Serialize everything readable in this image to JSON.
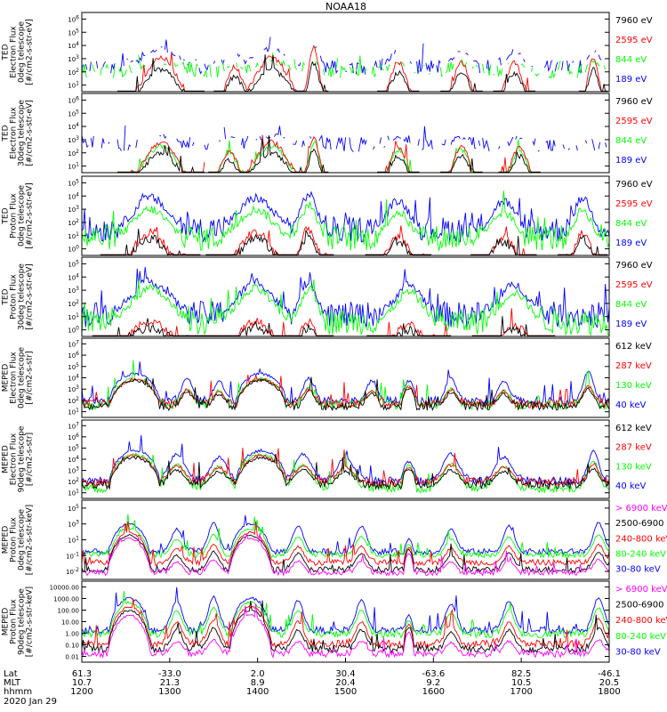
{
  "title": "NOAA18",
  "date": "2020 Jan 29",
  "colors": {
    "black": "#000000",
    "blue": "#0000ff",
    "red": "#ff0000",
    "green": "#00ff00",
    "magenta": "#ff00ff"
  },
  "xaxis": {
    "row_labels": [
      "Lat",
      "MLT",
      "hhmm"
    ],
    "ticks": [
      {
        "lat": "61.3",
        "mlt": "10.7",
        "hhmm": "1200"
      },
      {
        "lat": "-33.0",
        "mlt": "21.3",
        "hhmm": "1300"
      },
      {
        "lat": "2.0",
        "mlt": "8.9",
        "hhmm": "1400"
      },
      {
        "lat": "30.4",
        "mlt": "20.4",
        "hhmm": "1500"
      },
      {
        "lat": "-63.6",
        "mlt": "9.2",
        "hhmm": "1600"
      },
      {
        "lat": "82.5",
        "mlt": "10.5",
        "hhmm": "1700"
      },
      {
        "lat": "-46.1",
        "mlt": "20.5",
        "hhmm": "1800"
      }
    ],
    "range_hhmm": [
      1200,
      1800
    ]
  },
  "chart_data": [
    {
      "type": "line",
      "ylabel": [
        "TED",
        "Electron Flux",
        "0deg telescope",
        "[#/cm2-s-str-eV]"
      ],
      "yticks": [
        "10^1",
        "10^2",
        "10^3",
        "10^4",
        "10^5",
        "10^6"
      ],
      "legend": [
        {
          "label": "7960 eV",
          "color": "black"
        },
        {
          "label": "2595 eV",
          "color": "red"
        },
        {
          "label": "844 eV",
          "color": "green"
        },
        {
          "label": "189 eV",
          "color": "blue"
        }
      ],
      "ylim_log10": [
        0,
        6.5
      ],
      "series": {
        "blue": {
          "base": 2.0,
          "peak": 3.5
        },
        "red": {
          "base": -1,
          "peak": 2.8
        },
        "green": {
          "base": 1.7,
          "peak": 2.4
        },
        "black": {
          "base": -1,
          "peak": 1.8
        }
      },
      "events": [
        {
          "t": 0.15,
          "w": 0.06,
          "a": 1.0
        },
        {
          "t": 0.29,
          "w": 0.03,
          "a": 0.8
        },
        {
          "t": 0.36,
          "w": 0.06,
          "a": 1.0
        },
        {
          "t": 0.44,
          "w": 0.02,
          "a": 1.2
        },
        {
          "t": 0.6,
          "w": 0.03,
          "a": 0.9
        },
        {
          "t": 0.72,
          "w": 0.03,
          "a": 0.9
        },
        {
          "t": 0.82,
          "w": 0.03,
          "a": 0.9
        },
        {
          "t": 0.97,
          "w": 0.02,
          "a": 1.0
        }
      ],
      "bg": "sparse"
    },
    {
      "type": "line",
      "ylabel": [
        "TED",
        "Electron Flux",
        "30deg telescope",
        "[#/cm2-s-str-eV]"
      ],
      "yticks": [
        "10^1",
        "10^2",
        "10^3",
        "10^4",
        "10^5",
        "10^6"
      ],
      "legend": [
        {
          "label": "7960 eV",
          "color": "black"
        },
        {
          "label": "2595 eV",
          "color": "red"
        },
        {
          "label": "844 eV",
          "color": "green"
        },
        {
          "label": "189 eV",
          "color": "blue"
        }
      ],
      "ylim_log10": [
        0,
        6.5
      ],
      "series": {
        "blue": {
          "base": 2.3,
          "peak": 3.0
        },
        "red": {
          "base": -1,
          "peak": 2.5
        },
        "green": {
          "base": -1,
          "peak": 2.2
        },
        "black": {
          "base": -1,
          "peak": 1.6
        }
      },
      "events": [
        {
          "t": 0.15,
          "w": 0.06,
          "a": 1.0
        },
        {
          "t": 0.28,
          "w": 0.03,
          "a": 0.8
        },
        {
          "t": 0.36,
          "w": 0.06,
          "a": 1.0
        },
        {
          "t": 0.44,
          "w": 0.02,
          "a": 1.1
        },
        {
          "t": 0.6,
          "w": 0.03,
          "a": 0.9
        },
        {
          "t": 0.72,
          "w": 0.03,
          "a": 0.9
        },
        {
          "t": 0.83,
          "w": 0.03,
          "a": 0.9
        }
      ],
      "bg": "sparse"
    },
    {
      "type": "line",
      "ylabel": [
        "TED",
        "Proton Flux",
        "0deg telescope",
        "[#/cm2-s-str-eV]"
      ],
      "yticks": [
        "10^0",
        "10^1",
        "10^2",
        "10^3",
        "10^4",
        "10^5"
      ],
      "legend": [
        {
          "label": "7960 eV",
          "color": "black"
        },
        {
          "label": "2595 eV",
          "color": "red"
        },
        {
          "label": "844 eV",
          "color": "green"
        },
        {
          "label": "189 eV",
          "color": "blue"
        }
      ],
      "ylim_log10": [
        0,
        5.5
      ],
      "series": {
        "blue": {
          "base": 1.8,
          "peak": 4.0
        },
        "red": {
          "base": -1,
          "peak": 1.6
        },
        "green": {
          "base": 1.2,
          "peak": 3.2
        },
        "black": {
          "base": -1,
          "peak": 1.2
        }
      },
      "events": [
        {
          "t": 0.13,
          "w": 0.06,
          "a": 1.0
        },
        {
          "t": 0.33,
          "w": 0.06,
          "a": 1.0
        },
        {
          "t": 0.43,
          "w": 0.03,
          "a": 1.1
        },
        {
          "t": 0.6,
          "w": 0.04,
          "a": 0.9
        },
        {
          "t": 0.8,
          "w": 0.04,
          "a": 0.9
        },
        {
          "t": 0.95,
          "w": 0.03,
          "a": 1.0
        }
      ],
      "bg": "dense"
    },
    {
      "type": "line",
      "ylabel": [
        "TED",
        "Proton Flux",
        "30deg telescope",
        "[#/cm2-s-str-eV]"
      ],
      "yticks": [
        "10^0",
        "10^1",
        "10^2",
        "10^3",
        "10^4",
        "10^5"
      ],
      "legend": [
        {
          "label": "7960 eV",
          "color": "black"
        },
        {
          "label": "2595 eV",
          "color": "red"
        },
        {
          "label": "844 eV",
          "color": "green"
        },
        {
          "label": "189 eV",
          "color": "blue"
        }
      ],
      "ylim_log10": [
        0,
        5.5
      ],
      "series": {
        "blue": {
          "base": 1.5,
          "peak": 3.8
        },
        "red": {
          "base": -1,
          "peak": 1.0
        },
        "green": {
          "base": 1.0,
          "peak": 3.3
        },
        "black": {
          "base": -1,
          "peak": 0.6
        }
      },
      "events": [
        {
          "t": 0.13,
          "w": 0.07,
          "a": 1.0
        },
        {
          "t": 0.33,
          "w": 0.06,
          "a": 1.0
        },
        {
          "t": 0.43,
          "w": 0.03,
          "a": 1.0
        },
        {
          "t": 0.62,
          "w": 0.05,
          "a": 0.9
        },
        {
          "t": 0.82,
          "w": 0.05,
          "a": 0.9
        }
      ],
      "bg": "dense"
    },
    {
      "type": "line",
      "ylabel": [
        "MEPED",
        "Electron Flux",
        "0deg telescope",
        "[#/cm2-s-str]"
      ],
      "yticks": [
        "10^1",
        "10^2",
        "10^3",
        "10^4",
        "10^5",
        "10^6",
        "10^7"
      ],
      "legend": [
        {
          "label": "612 keV",
          "color": "black"
        },
        {
          "label": "287 keV",
          "color": "red"
        },
        {
          "label": "130 keV",
          "color": "green"
        },
        {
          "label": "40 keV",
          "color": "blue"
        }
      ],
      "ylim_log10": [
        1,
        7.3
      ],
      "series": {
        "blue": {
          "base": 2.3,
          "peak": 4.6
        },
        "red": {
          "base": 2.1,
          "peak": 3.5
        },
        "green": {
          "base": 2.0,
          "peak": 3.6
        },
        "black": {
          "base": 1.9,
          "peak": 3.3
        }
      },
      "domes": [
        {
          "t": 0.1,
          "w": 0.05,
          "peak": 3.9
        },
        {
          "t": 0.34,
          "w": 0.05,
          "peak": 3.9
        },
        {
          "t": 0.62,
          "w": 0.015,
          "peak": 3.3
        }
      ],
      "events": [
        {
          "t": 0.2,
          "w": 0.02,
          "a": 0.8
        },
        {
          "t": 0.26,
          "w": 0.02,
          "a": 0.7
        },
        {
          "t": 0.43,
          "w": 0.02,
          "a": 0.8
        },
        {
          "t": 0.55,
          "w": 0.02,
          "a": 0.7
        },
        {
          "t": 0.7,
          "w": 0.02,
          "a": 0.8
        },
        {
          "t": 0.8,
          "w": 0.02,
          "a": 0.7
        },
        {
          "t": 0.96,
          "w": 0.02,
          "a": 1.0
        }
      ],
      "bg": "meped"
    },
    {
      "type": "line",
      "ylabel": [
        "MEPED",
        "Electron Flux",
        "90deg telescope",
        "[#/cm2-s-str]"
      ],
      "yticks": [
        "10^1",
        "10^2",
        "10^3",
        "10^4",
        "10^5",
        "10^6",
        "10^7"
      ],
      "legend": [
        {
          "label": "612 keV",
          "color": "black"
        },
        {
          "label": "287 keV",
          "color": "red"
        },
        {
          "label": "130 keV",
          "color": "green"
        },
        {
          "label": "40 keV",
          "color": "blue"
        }
      ],
      "ylim_log10": [
        1,
        7.3
      ],
      "series": {
        "blue": {
          "base": 2.4,
          "peak": 4.8
        },
        "red": {
          "base": 2.3,
          "peak": 3.8
        },
        "green": {
          "base": 1.8,
          "peak": 4.0
        },
        "black": {
          "base": 2.1,
          "peak": 3.4
        }
      },
      "domes": [
        {
          "t": 0.1,
          "w": 0.05,
          "peak": 4.2
        },
        {
          "t": 0.34,
          "w": 0.05,
          "peak": 4.2
        },
        {
          "t": 0.62,
          "w": 0.015,
          "peak": 3.3
        }
      ],
      "events": [
        {
          "t": 0.18,
          "w": 0.03,
          "a": 0.9
        },
        {
          "t": 0.26,
          "w": 0.03,
          "a": 0.8
        },
        {
          "t": 0.42,
          "w": 0.03,
          "a": 0.9
        },
        {
          "t": 0.5,
          "w": 0.03,
          "a": 0.8
        },
        {
          "t": 0.7,
          "w": 0.03,
          "a": 0.9
        },
        {
          "t": 0.8,
          "w": 0.03,
          "a": 0.8
        },
        {
          "t": 0.97,
          "w": 0.02,
          "a": 1.0
        }
      ],
      "bg": "meped"
    },
    {
      "type": "line",
      "ylabel": [
        "MEPED",
        "Proton Flux",
        "0deg telescope",
        "[#/cm2-s-str-keV]"
      ],
      "yticks": [
        "10^-2",
        "10^-1",
        "10^1",
        "10^3",
        "10^5"
      ],
      "legend": [
        {
          "label": "> 6900 keV",
          "color": "magenta"
        },
        {
          "label": "2500-6900",
          "color": "black"
        },
        {
          "label": "240-800 keV",
          "color": "red"
        },
        {
          "label": "80-240 keV",
          "color": "green"
        },
        {
          "label": "30-80 keV",
          "color": "blue"
        }
      ],
      "ylim_log10": [
        -2.5,
        5.5
      ],
      "series": {
        "blue": {
          "base": 0.3,
          "peak": 3.2
        },
        "green": {
          "base": 0.0,
          "peak": 2.0
        },
        "red": {
          "base": -0.8,
          "peak": 1.0
        },
        "black": {
          "base": -1.5,
          "peak": 0.3
        },
        "magenta": {
          "base": -1.8,
          "peak": -0.5
        }
      },
      "domes": [
        {
          "t": 0.09,
          "w": 0.045,
          "peak": 3.1
        },
        {
          "t": 0.32,
          "w": 0.045,
          "peak": 3.1
        },
        {
          "t": 0.62,
          "w": 0.012,
          "peak": 1.6
        }
      ],
      "events": [
        {
          "t": 0.18,
          "w": 0.02,
          "a": 0.8
        },
        {
          "t": 0.25,
          "w": 0.02,
          "a": 1.0
        },
        {
          "t": 0.41,
          "w": 0.02,
          "a": 0.9
        },
        {
          "t": 0.53,
          "w": 0.02,
          "a": 0.9
        },
        {
          "t": 0.7,
          "w": 0.02,
          "a": 0.8
        },
        {
          "t": 0.81,
          "w": 0.02,
          "a": 0.9
        },
        {
          "t": 0.98,
          "w": 0.02,
          "a": 1.0
        }
      ],
      "bg": "proton"
    },
    {
      "type": "line",
      "ylabel": [
        "MEPED",
        "Proton Flux",
        "90deg telescope",
        "[#/cm2-s-str-keV]"
      ],
      "yticks": [
        "0.01",
        "0.10",
        "1.00",
        "10.00",
        "100.00",
        "1000.00",
        "10000.00"
      ],
      "legend": [
        {
          "label": "> 6900 keV",
          "color": "magenta"
        },
        {
          "label": "2500-6900",
          "color": "black"
        },
        {
          "label": "240-800 keV",
          "color": "red"
        },
        {
          "label": "80-240 keV",
          "color": "green"
        },
        {
          "label": "30-80 keV",
          "color": "blue"
        }
      ],
      "ylim_log10": [
        -2.3,
        4.3
      ],
      "series": {
        "blue": {
          "base": 0.3,
          "peak": 3.0
        },
        "green": {
          "base": 0.0,
          "peak": 2.1
        },
        "red": {
          "base": -0.8,
          "peak": 1.2
        },
        "black": {
          "base": -1.2,
          "peak": 0.5
        },
        "magenta": {
          "base": -1.6,
          "peak": -0.5
        }
      },
      "domes": [
        {
          "t": 0.09,
          "w": 0.045,
          "peak": 3.0
        },
        {
          "t": 0.32,
          "w": 0.045,
          "peak": 3.0
        },
        {
          "t": 0.62,
          "w": 0.012,
          "peak": 1.6
        }
      ],
      "events": [
        {
          "t": 0.18,
          "w": 0.02,
          "a": 0.9
        },
        {
          "t": 0.25,
          "w": 0.02,
          "a": 1.0
        },
        {
          "t": 0.41,
          "w": 0.02,
          "a": 0.9
        },
        {
          "t": 0.53,
          "w": 0.02,
          "a": 0.9
        },
        {
          "t": 0.7,
          "w": 0.02,
          "a": 0.8
        },
        {
          "t": 0.81,
          "w": 0.02,
          "a": 0.9
        },
        {
          "t": 0.98,
          "w": 0.02,
          "a": 1.0
        }
      ],
      "bg": "proton"
    }
  ]
}
